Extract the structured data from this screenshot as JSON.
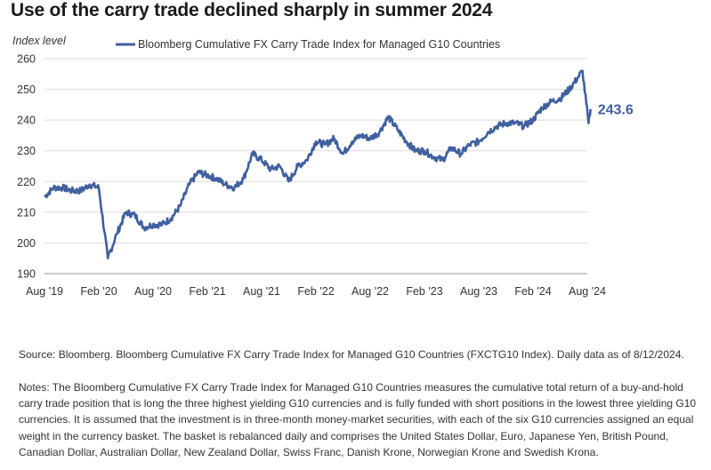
{
  "title": "Use of the carry trade declined sharply in summer 2024",
  "source": "Source: Bloomberg. Bloomberg Cumulative FX Carry Trade Index for Managed G10 Countries (FXCTG10 Index). Daily data as of 8/12/2024.",
  "notes": "Notes: The Bloomberg Cumulative FX Carry Trade Index for Managed G10 Countries measures the cumulative total return of a buy-and-hold carry trade position that is long the three highest yielding G10 currencies and is fully funded with short positions in the lowest three yielding G10 currencies. It is assumed that the investment is in three-month money-market securities, with each of the six G10 currencies assigned an equal weight in the currency basket. The basket is rebalanced daily and comprises the United States Dollar, Euro, Japanese Yen, British Pound, Canadian Dollar, Australian Dollar, New Zealand Dollar, Swiss Franc, Danish Krone, Norwegian Krone and Swedish Krona.",
  "chart_data": {
    "type": "line",
    "title": "Use of the carry trade declined sharply in summer 2024",
    "ylabel": "Index level",
    "ylim": [
      190,
      260
    ],
    "yticks": [
      190,
      200,
      210,
      220,
      230,
      240,
      250,
      260
    ],
    "xlim": [
      "2019-08",
      "2024-08"
    ],
    "x_tick_labels": [
      "Aug '19",
      "Feb '20",
      "Aug '20",
      "Feb '21",
      "Aug '21",
      "Feb '22",
      "Aug '22",
      "Feb '23",
      "Aug '23",
      "Feb '24",
      "Aug '24"
    ],
    "grid": "horizontal",
    "legend": "top",
    "line_color": "#3f5f9f",
    "end_label": "243.6",
    "series": [
      {
        "name": "Bloomberg Cumulative FX Carry Trade Index for Managed G10 Countries",
        "x": [
          "2019-08",
          "2019-09",
          "2019-10",
          "2019-11",
          "2019-12",
          "2020-01",
          "2020-02",
          "2020-03",
          "2020-04",
          "2020-05",
          "2020-06",
          "2020-07",
          "2020-08",
          "2020-09",
          "2020-10",
          "2020-11",
          "2020-12",
          "2021-01",
          "2021-02",
          "2021-03",
          "2021-04",
          "2021-05",
          "2021-06",
          "2021-07",
          "2021-08",
          "2021-09",
          "2021-10",
          "2021-11",
          "2021-12",
          "2022-01",
          "2022-02",
          "2022-03",
          "2022-04",
          "2022-05",
          "2022-06",
          "2022-07",
          "2022-08",
          "2022-09",
          "2022-10",
          "2022-11",
          "2022-12",
          "2023-01",
          "2023-02",
          "2023-03",
          "2023-04",
          "2023-05",
          "2023-06",
          "2023-07",
          "2023-08",
          "2023-09",
          "2023-10",
          "2023-11",
          "2023-12",
          "2024-01",
          "2024-02",
          "2024-03",
          "2024-04",
          "2024-05",
          "2024-06",
          "2024-07",
          "2024-07-15",
          "2024-08-05",
          "2024-08-12"
        ],
        "values": [
          215,
          218,
          218,
          217,
          217,
          219,
          218,
          195,
          203,
          210,
          209,
          205,
          206,
          206,
          208,
          212,
          219,
          223,
          222,
          221,
          219,
          218,
          221,
          229,
          227,
          224,
          225,
          220,
          225,
          227,
          233,
          232,
          234,
          229,
          233,
          235,
          234,
          236,
          241,
          237,
          233,
          230,
          230,
          228,
          227,
          231,
          229,
          232,
          233,
          236,
          238,
          239,
          239,
          238,
          240,
          244,
          246,
          247,
          250,
          254,
          256,
          239,
          243.6
        ]
      }
    ]
  }
}
